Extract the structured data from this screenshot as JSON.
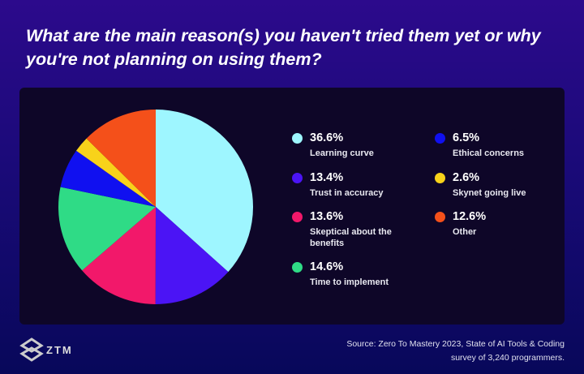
{
  "chart_data": {
    "type": "pie",
    "title": "What are the main reason(s) you haven't tried them yet or why you're not planning on using them?",
    "slices": [
      {
        "label": "Learning curve",
        "value": 36.6,
        "pct": "36.6%",
        "color": "#9ef6ff"
      },
      {
        "label": "Trust in accuracy",
        "value": 13.4,
        "pct": "13.4%",
        "color": "#4b14f5"
      },
      {
        "label": "Skeptical about the benefits",
        "value": 13.6,
        "pct": "13.6%",
        "color": "#f2186a"
      },
      {
        "label": "Time to implement",
        "value": 14.6,
        "pct": "14.6%",
        "color": "#2fdb86"
      },
      {
        "label": "Ethical concerns",
        "value": 6.5,
        "pct": "6.5%",
        "color": "#1010f0"
      },
      {
        "label": "Skynet going live",
        "value": 2.6,
        "pct": "2.6%",
        "color": "#f8d21a"
      },
      {
        "label": "Other",
        "value": 12.6,
        "pct": "12.6%",
        "color": "#f4501a"
      }
    ],
    "legend_placement": "right"
  },
  "source": "Source: Zero To Mastery 2023, State of AI Tools & Coding",
  "source2": "survey of 3,240 programmers.",
  "logo": "ZTM"
}
